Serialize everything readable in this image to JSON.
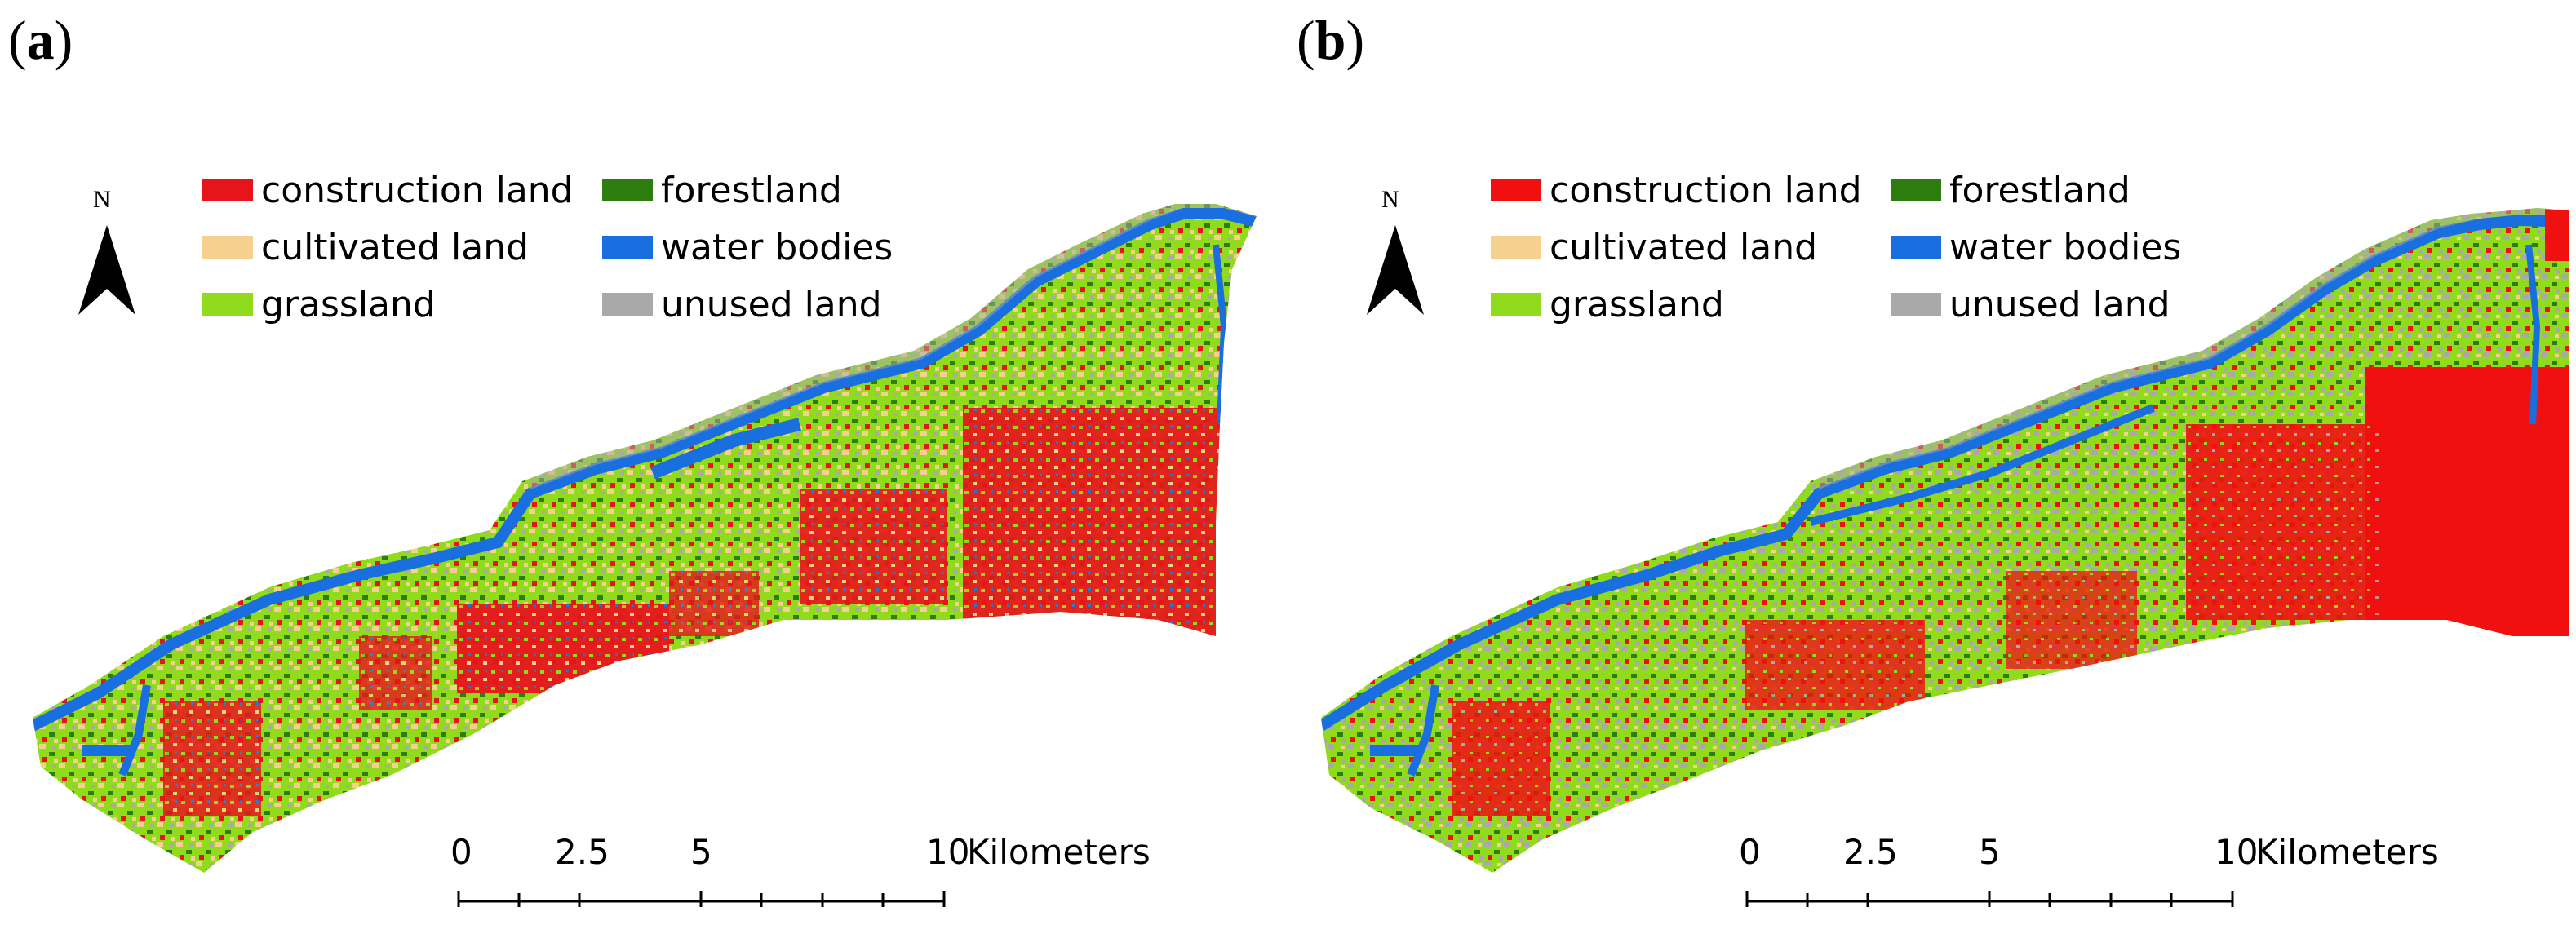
{
  "panels": [
    {
      "id": "a",
      "label_open": "(",
      "label_letter": "a",
      "label_close": ")"
    },
    {
      "id": "b",
      "label_open": "(",
      "label_letter": "b",
      "label_close": ")"
    }
  ],
  "north_arrow": {
    "letter": "N"
  },
  "legend": [
    {
      "label": "construction land",
      "color": "#e8141b"
    },
    {
      "label": "forestland",
      "color": "#2e7d11"
    },
    {
      "label": "cultivated land",
      "color": "#f6d08e"
    },
    {
      "label": "water bodies",
      "color": "#1a6fe0"
    },
    {
      "label": "grassland",
      "color": "#8fdb1c"
    },
    {
      "label": "unused land",
      "color": "#a9a9a9"
    }
  ],
  "scale_bar": {
    "ticks": [
      "0",
      "2.5",
      "5",
      "10"
    ],
    "unit": "Kilometers"
  }
}
